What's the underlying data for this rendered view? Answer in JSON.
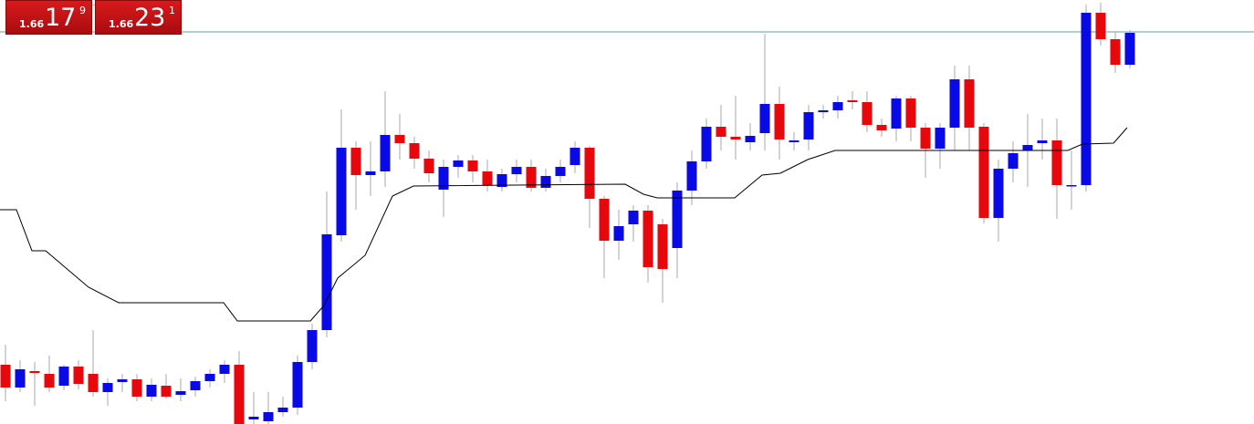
{
  "chart_data": {
    "type": "candlestick",
    "xlim": [
      -0.375,
      85.5
    ],
    "ylim": [
      0,
      465
    ],
    "up_color": "#0a0ae8",
    "down_color": "#e8080c",
    "open": [
      65,
      40,
      58,
      55,
      42,
      63,
      55,
      35,
      46,
      49,
      30,
      42,
      32,
      37,
      47,
      55,
      65,
      5,
      3,
      13,
      18,
      68,
      103,
      207,
      303,
      273,
      277,
      317,
      308,
      291,
      257,
      282,
      289,
      277,
      260,
      274,
      282,
      259,
      272,
      284,
      303,
      247,
      201,
      219,
      234,
      219,
      193,
      256,
      288,
      326,
      315,
      309,
      319,
      351,
      309,
      312,
      342,
      344,
      355,
      353,
      328,
      324,
      357,
      325,
      302,
      325,
      378,
      326,
      226,
      280,
      300,
      308,
      311,
      261,
      262,
      451,
      422,
      394
    ],
    "high": [
      87,
      70,
      68,
      75,
      65,
      70,
      103,
      50,
      55,
      55,
      50,
      55,
      50,
      52,
      60,
      70,
      80,
      35,
      35,
      30,
      75,
      110,
      255,
      345,
      310,
      310,
      365,
      340,
      315,
      300,
      290,
      295,
      295,
      290,
      280,
      290,
      290,
      280,
      290,
      310,
      305,
      250,
      235,
      240,
      240,
      225,
      265,
      300,
      335,
      350,
      360,
      330,
      428,
      370,
      320,
      350,
      350,
      360,
      365,
      365,
      335,
      360,
      360,
      330,
      330,
      393,
      393,
      330,
      290,
      310,
      340,
      335,
      335,
      300,
      460,
      462,
      430,
      432
    ],
    "low": [
      25,
      35,
      20,
      35,
      37,
      38,
      30,
      20,
      35,
      25,
      25,
      28,
      25,
      30,
      40,
      45,
      0,
      0,
      0,
      8,
      10,
      60,
      95,
      200,
      235,
      250,
      260,
      290,
      280,
      265,
      227,
      270,
      265,
      255,
      255,
      265,
      255,
      255,
      265,
      275,
      215,
      160,
      180,
      200,
      155,
      133,
      160,
      240,
      280,
      300,
      290,
      300,
      300,
      290,
      300,
      300,
      335,
      335,
      345,
      320,
      315,
      310,
      310,
      270,
      280,
      300,
      300,
      220,
      200,
      265,
      260,
      290,
      225,
      235,
      255,
      415,
      385,
      390
    ],
    "close": [
      40,
      60,
      56,
      40,
      63,
      44,
      35,
      45,
      49,
      30,
      43,
      30,
      36,
      47,
      55,
      65,
      0,
      8,
      13,
      18,
      68,
      103,
      208,
      303,
      273,
      277,
      317,
      308,
      291,
      275,
      282,
      289,
      277,
      262,
      274,
      282,
      259,
      272,
      282,
      303,
      247,
      201,
      217,
      234,
      172,
      170,
      256,
      288,
      326,
      315,
      312,
      316,
      351,
      312,
      311,
      342,
      344,
      353,
      353,
      328,
      322,
      357,
      325,
      302,
      325,
      378,
      325,
      226,
      280,
      297,
      306,
      311,
      262,
      262,
      451,
      422,
      394,
      429
    ],
    "line": {
      "color": "#000000",
      "x": [
        -0.375,
        0.75,
        1.81,
        2.75,
        5.69,
        7.75,
        14.94,
        15.88,
        20.88,
        21.81,
        22.75,
        24.63,
        26.5,
        27.94,
        42.44,
        43.69,
        44.63,
        49.94,
        51.81,
        53.06,
        54.94,
        56.81,
        72.75,
        73.75,
        75.88,
        76.81
      ],
      "values": [
        235,
        235,
        190,
        190,
        150,
        133,
        133,
        113,
        113,
        130,
        160,
        185,
        250,
        261,
        263,
        252,
        248,
        248,
        273,
        275,
        290,
        300,
        300,
        307,
        308,
        325
      ]
    },
    "price_line": {
      "value": 430,
      "color": "#5f9f9a"
    },
    "quotes": [
      {
        "prefix": "1.66",
        "big": "17",
        "sup": "9"
      },
      {
        "prefix": "1.66",
        "big": "23",
        "sup": "1"
      }
    ]
  }
}
